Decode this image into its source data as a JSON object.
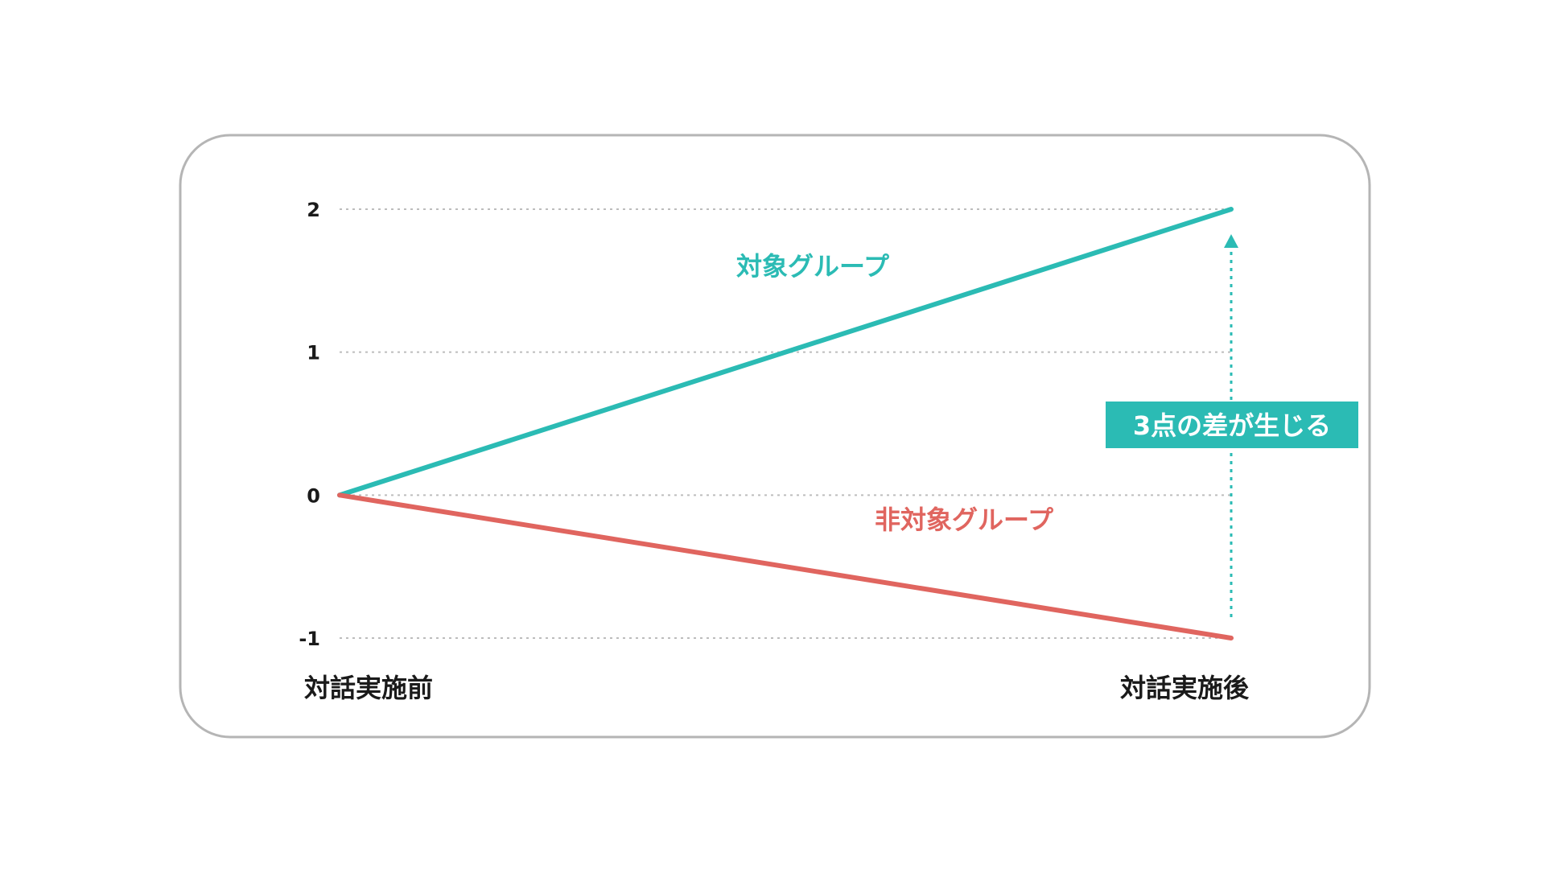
{
  "chart_data": {
    "type": "line",
    "categories": [
      "対話実施前",
      "対話実施後"
    ],
    "y_ticks": [
      "2",
      "1",
      "0",
      "-1"
    ],
    "ylim": [
      -1,
      2
    ],
    "grid": true,
    "series": [
      {
        "name": "対象グループ",
        "values": [
          0,
          2
        ],
        "color": "#2bbbb4"
      },
      {
        "name": "非対象グループ",
        "values": [
          0,
          -1
        ],
        "color": "#e0655f"
      }
    ],
    "annotation": {
      "text": "3点の差が生じる",
      "color": "#2bbbb4",
      "from": -1,
      "to": 2
    }
  }
}
